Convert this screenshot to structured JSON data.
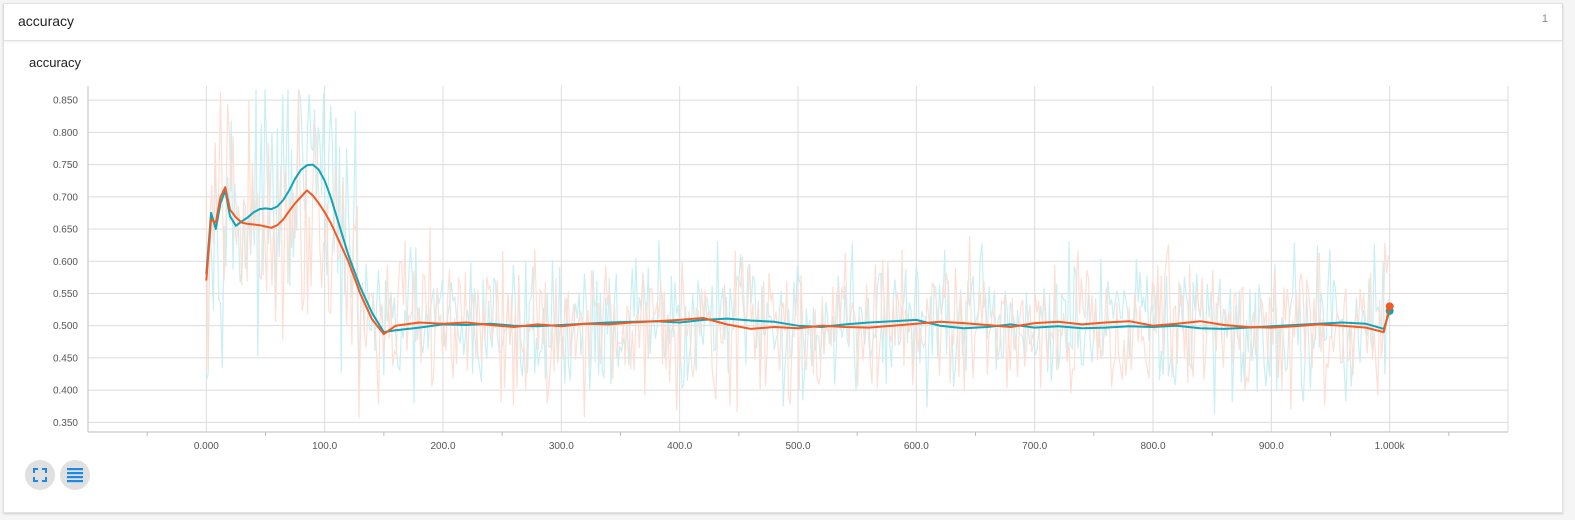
{
  "card": {
    "title": "accuracy",
    "count": "1"
  },
  "chart_data": {
    "type": "line",
    "title": "accuracy",
    "xlabel": "",
    "ylabel": "",
    "xlim": [
      -100,
      1100
    ],
    "ylim": [
      0.335,
      0.872
    ],
    "grid": true,
    "x_tick_labels": [
      "0.000",
      "100.0",
      "200.0",
      "300.0",
      "400.0",
      "500.0",
      "600.0",
      "700.0",
      "800.0",
      "900.0",
      "1.000k"
    ],
    "x_ticks": [
      0,
      100,
      200,
      300,
      400,
      500,
      600,
      700,
      800,
      900,
      1000
    ],
    "y_tick_labels": [
      "0.850",
      "0.800",
      "0.750",
      "0.700",
      "0.650",
      "0.600",
      "0.550",
      "0.500",
      "0.450",
      "0.400",
      "0.350"
    ],
    "y_ticks": [
      0.85,
      0.8,
      0.75,
      0.7,
      0.65,
      0.6,
      0.55,
      0.5,
      0.45,
      0.4,
      0.35
    ],
    "series": [
      {
        "color": "#12a4b4",
        "raw_color": "#c3edf2",
        "x": [
          0,
          4,
          8,
          12,
          16,
          20,
          25,
          30,
          35,
          40,
          45,
          50,
          55,
          60,
          65,
          70,
          75,
          80,
          85,
          90,
          95,
          100,
          105,
          110,
          115,
          120,
          130,
          140,
          150,
          160,
          180,
          200,
          220,
          240,
          260,
          280,
          300,
          320,
          340,
          360,
          380,
          400,
          420,
          440,
          460,
          480,
          500,
          520,
          540,
          560,
          580,
          600,
          620,
          640,
          660,
          680,
          700,
          720,
          740,
          760,
          780,
          800,
          820,
          840,
          860,
          880,
          900,
          920,
          940,
          960,
          980,
          995,
          1000
        ],
        "y": [
          0.58,
          0.675,
          0.65,
          0.69,
          0.71,
          0.67,
          0.655,
          0.662,
          0.668,
          0.676,
          0.681,
          0.682,
          0.681,
          0.685,
          0.695,
          0.71,
          0.728,
          0.742,
          0.749,
          0.75,
          0.742,
          0.725,
          0.7,
          0.67,
          0.64,
          0.61,
          0.56,
          0.52,
          0.49,
          0.493,
          0.497,
          0.502,
          0.501,
          0.503,
          0.5,
          0.499,
          0.501,
          0.503,
          0.505,
          0.506,
          0.507,
          0.505,
          0.509,
          0.511,
          0.508,
          0.506,
          0.5,
          0.498,
          0.502,
          0.505,
          0.507,
          0.509,
          0.5,
          0.496,
          0.498,
          0.502,
          0.497,
          0.499,
          0.496,
          0.497,
          0.499,
          0.498,
          0.5,
          0.496,
          0.495,
          0.497,
          0.499,
          0.501,
          0.503,
          0.505,
          0.503,
          0.495,
          0.523
        ]
      },
      {
        "color": "#f15a24",
        "raw_color": "#fddbd0",
        "x": [
          0,
          4,
          8,
          12,
          16,
          20,
          25,
          30,
          35,
          40,
          45,
          50,
          55,
          60,
          65,
          70,
          75,
          80,
          85,
          90,
          95,
          100,
          105,
          110,
          115,
          120,
          130,
          140,
          150,
          160,
          180,
          200,
          220,
          240,
          260,
          280,
          300,
          320,
          340,
          360,
          380,
          400,
          420,
          440,
          460,
          480,
          500,
          520,
          540,
          560,
          580,
          600,
          620,
          640,
          660,
          680,
          700,
          720,
          740,
          760,
          780,
          800,
          820,
          840,
          860,
          880,
          900,
          920,
          940,
          960,
          980,
          995,
          1000
        ],
        "y": [
          0.57,
          0.665,
          0.66,
          0.7,
          0.715,
          0.68,
          0.668,
          0.66,
          0.658,
          0.657,
          0.656,
          0.654,
          0.652,
          0.656,
          0.665,
          0.678,
          0.69,
          0.7,
          0.71,
          0.702,
          0.69,
          0.676,
          0.66,
          0.64,
          0.62,
          0.6,
          0.55,
          0.51,
          0.487,
          0.5,
          0.505,
          0.503,
          0.505,
          0.501,
          0.498,
          0.502,
          0.499,
          0.503,
          0.502,
          0.505,
          0.507,
          0.509,
          0.512,
          0.502,
          0.495,
          0.498,
          0.496,
          0.5,
          0.498,
          0.497,
          0.5,
          0.503,
          0.506,
          0.504,
          0.501,
          0.498,
          0.504,
          0.506,
          0.502,
          0.505,
          0.507,
          0.5,
          0.503,
          0.507,
          0.501,
          0.498,
          0.497,
          0.499,
          0.502,
          0.5,
          0.497,
          0.49,
          0.53
        ]
      }
    ]
  }
}
